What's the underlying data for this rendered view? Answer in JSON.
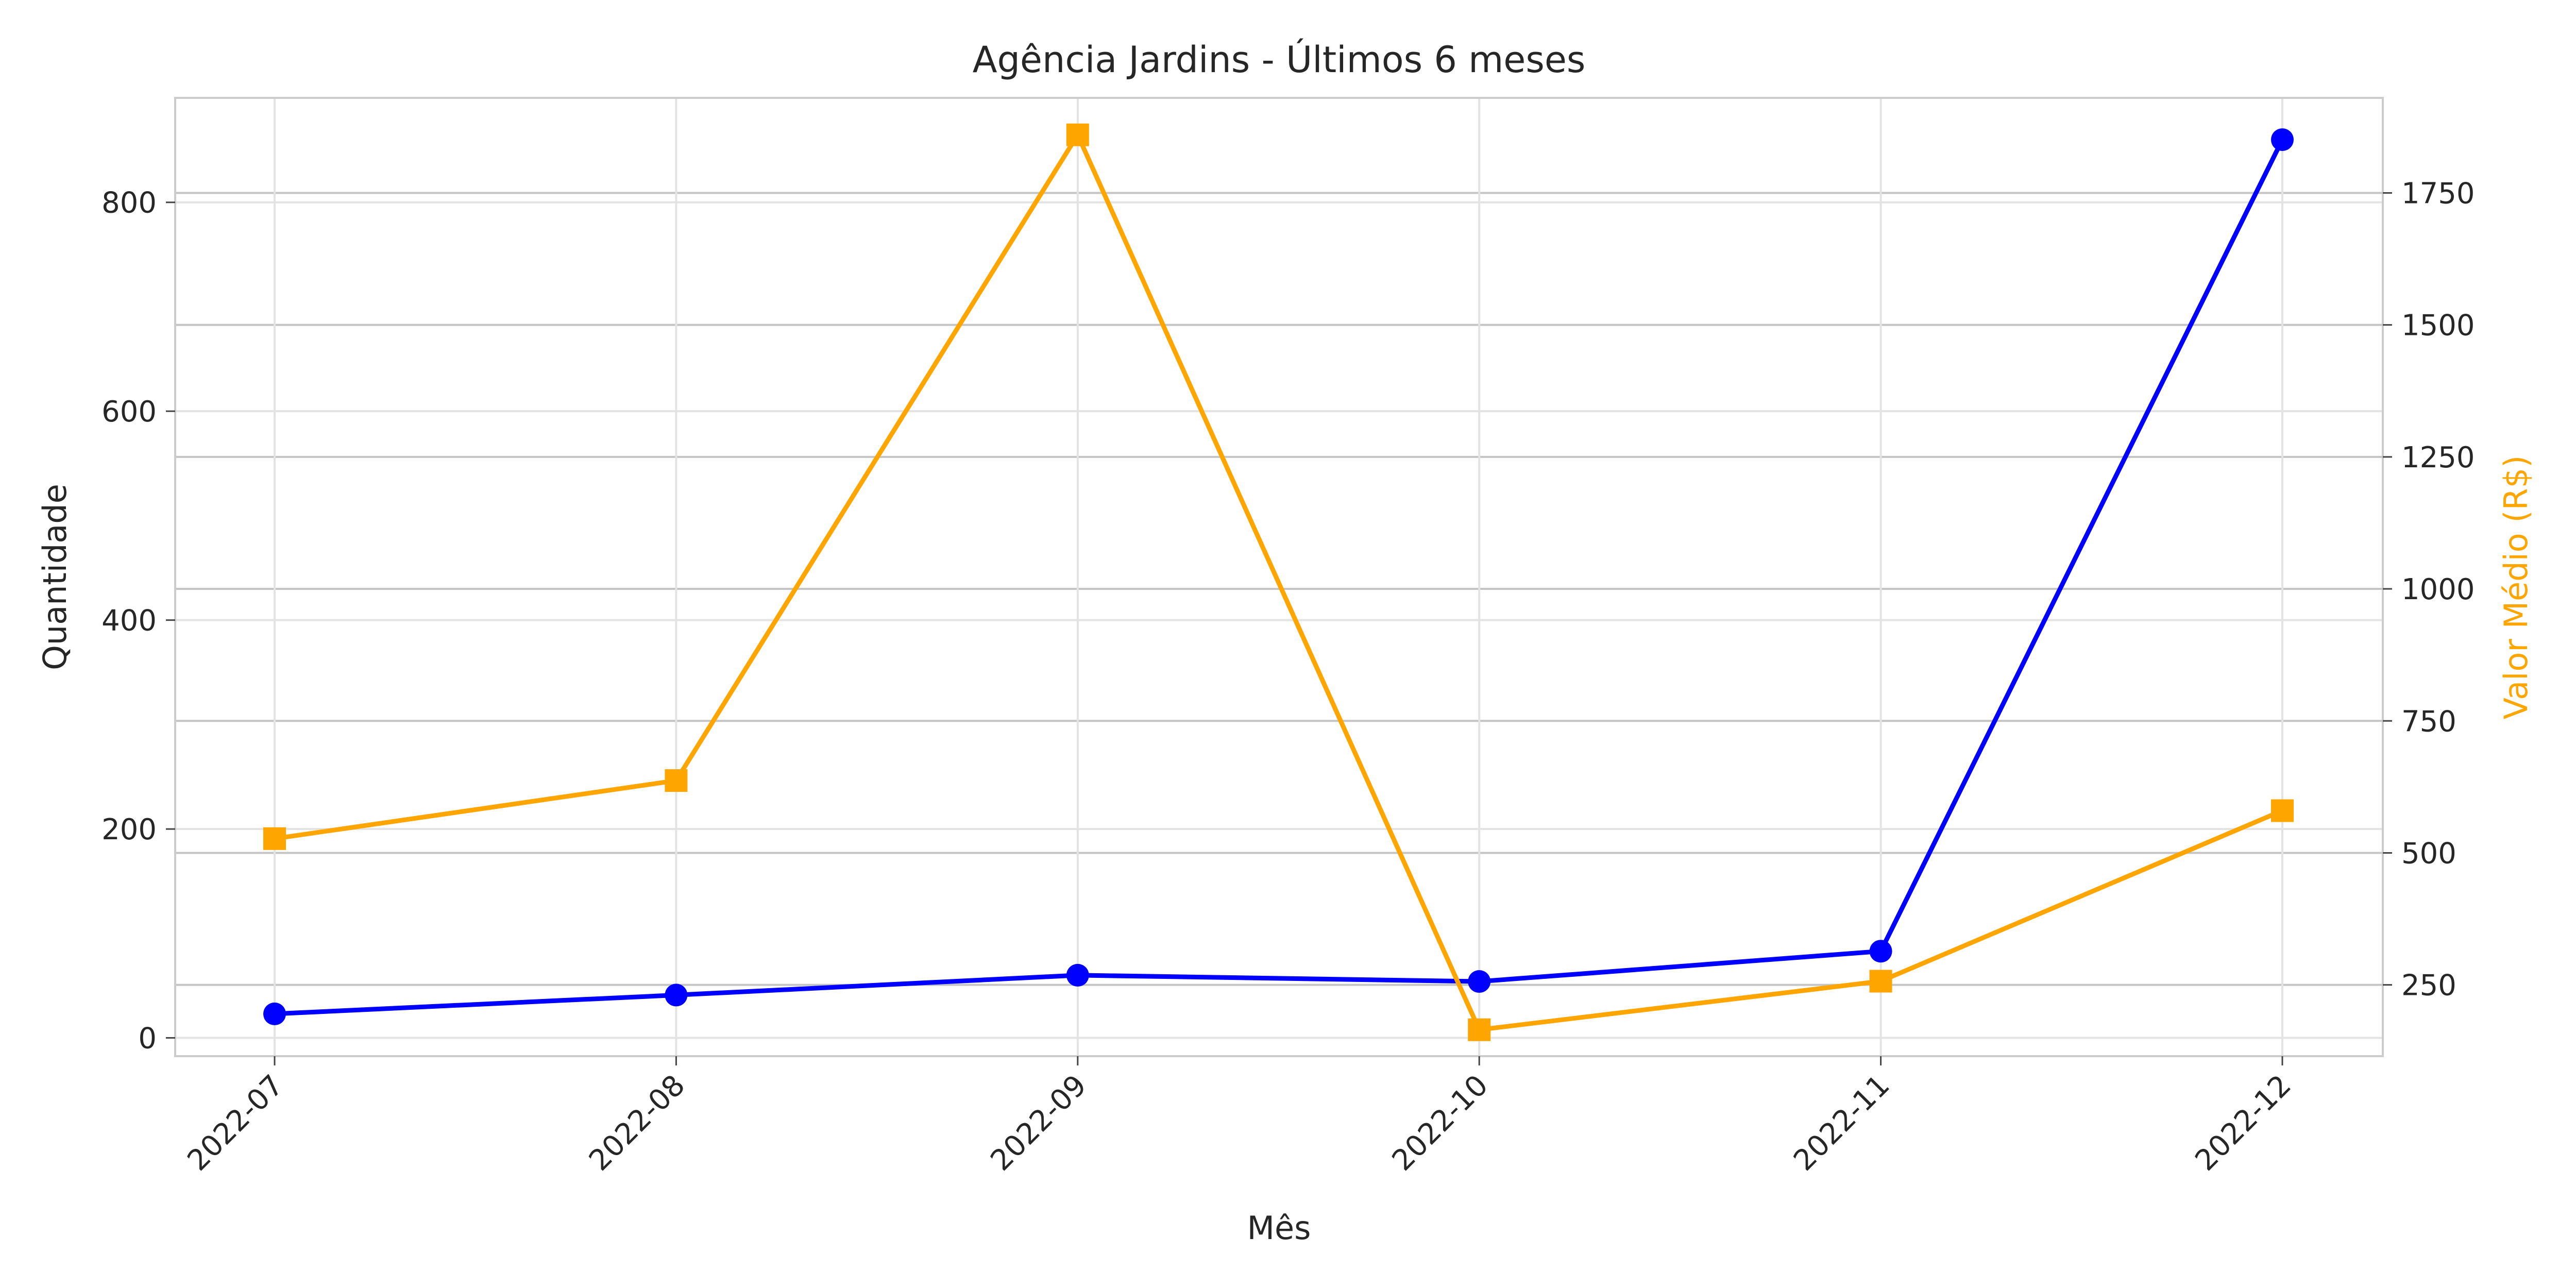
{
  "chart_data": {
    "type": "line",
    "title": "Agência Jardins - Últimos 6 meses",
    "xlabel": "Mês",
    "ylabel_left": "Quantidade",
    "ylabel_right": "Valor Médio (R$)",
    "categories": [
      "2022-07",
      "2022-08",
      "2022-09",
      "2022-10",
      "2022-11",
      "2022-12"
    ],
    "ylim_left": [
      -17.5,
      900
    ],
    "yticks_left": [
      0,
      200,
      400,
      600,
      800
    ],
    "ylim_right": [
      115,
      1930
    ],
    "yticks_right": [
      250,
      500,
      750,
      1000,
      1250,
      1500,
      1750
    ],
    "grid": true,
    "series": [
      {
        "axis": "left",
        "marker": "circle",
        "color": "#0000ff",
        "values": [
          23,
          41,
          60,
          54,
          83,
          860
        ]
      },
      {
        "axis": "right",
        "marker": "square",
        "color": "#ffa500",
        "values": [
          527,
          637,
          1860,
          165,
          257,
          580
        ]
      }
    ]
  }
}
